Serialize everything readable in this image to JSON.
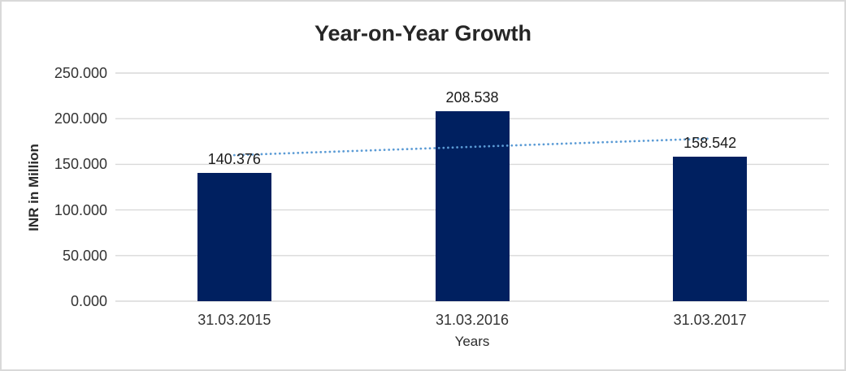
{
  "chart_data": {
    "type": "bar",
    "title": "Year-on-Year Growth",
    "xlabel": "Years",
    "ylabel": "INR in Million",
    "categories": [
      "31.03.2015",
      "31.03.2016",
      "31.03.2017"
    ],
    "values": [
      140.376,
      208.538,
      158.542
    ],
    "value_labels": [
      "140.376",
      "208.538",
      "158.542"
    ],
    "ylim": [
      0,
      250
    ],
    "yticks": [
      0,
      50,
      100,
      150,
      200,
      250
    ],
    "ytick_labels": [
      "0.000",
      "50.000",
      "100.000",
      "150.000",
      "200.000",
      "250.000"
    ],
    "grid": true,
    "legend": false,
    "trendline": {
      "type": "linear",
      "style": "dotted",
      "start_value": 160.07,
      "end_value": 178.24
    },
    "colors": {
      "bar": "#002060",
      "trendline": "#5b9bd5",
      "gridline": "#d9d9d9",
      "background": "#ffffff",
      "border": "#d9d9d9",
      "title_text": "#262626",
      "label_text": "#1a1a1a"
    }
  }
}
